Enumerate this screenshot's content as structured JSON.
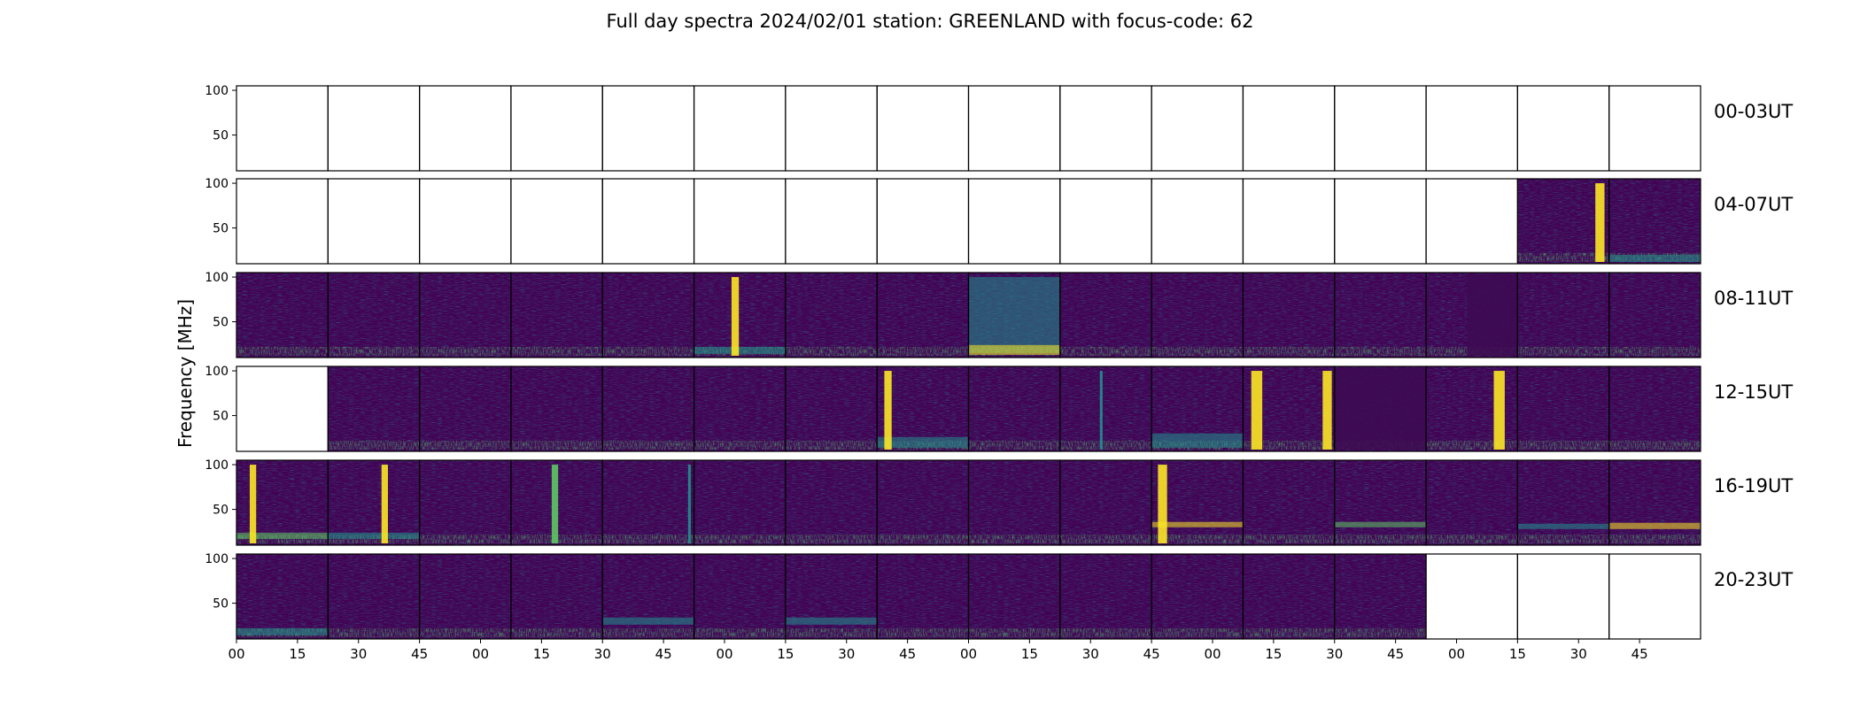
{
  "chart_data": {
    "type": "heatmap",
    "title": "Full day spectra 2024/02/01 station: GREENLAND with focus-code: 62",
    "ylabel": "Frequency [MHz]",
    "xlabel": "",
    "ylim": [
      10,
      105
    ],
    "y_ticks": [
      50,
      100
    ],
    "x_tick_labels": [
      "00",
      "15",
      "30",
      "45",
      "00",
      "15",
      "30",
      "45",
      "00",
      "15",
      "30",
      "45",
      "00",
      "15",
      "30",
      "45",
      "00",
      "15",
      "30",
      "45",
      "00",
      "15",
      "30",
      "45"
    ],
    "colormap": [
      "#440154",
      "#3b528b",
      "#21918c",
      "#5ec962",
      "#fde725"
    ],
    "rows": [
      {
        "label": "00-03UT",
        "panels": [
          0,
          0,
          0,
          0,
          0,
          0,
          0,
          0,
          0,
          0,
          0,
          0,
          0,
          0,
          0,
          0
        ],
        "bursts": [],
        "bands": []
      },
      {
        "label": "04-07UT",
        "panels": [
          0,
          0,
          0,
          0,
          0,
          0,
          0,
          0,
          0,
          0,
          0,
          0,
          0,
          0,
          1,
          1
        ],
        "bursts": [
          {
            "panel": 14,
            "pos": 0.9,
            "width": 0.1,
            "intensity": 1.0
          }
        ],
        "bands": [
          {
            "panel": 15,
            "fmin": 12,
            "fmax": 20,
            "intensity": 0.6
          }
        ]
      },
      {
        "label": "08-11UT",
        "panels": [
          1,
          1,
          1,
          1,
          1,
          1,
          1,
          1,
          1,
          1,
          1,
          1,
          1,
          1,
          1,
          1
        ],
        "bursts": [
          {
            "panel": 5,
            "pos": 0.45,
            "width": 0.08,
            "intensity": 1.0
          }
        ],
        "bands": [
          {
            "panel": 8,
            "fmin": 15,
            "fmax": 100,
            "intensity": 0.45
          },
          {
            "panel": 8,
            "fmin": 13,
            "fmax": 24,
            "intensity": 0.95
          },
          {
            "panel": 5,
            "fmin": 14,
            "fmax": 22,
            "intensity": 0.5
          }
        ],
        "quiet": [
          {
            "panel": 13,
            "from": 0.45,
            "to": 1.0
          }
        ]
      },
      {
        "label": "12-15UT",
        "panels": [
          0,
          1,
          1,
          1,
          1,
          1,
          1,
          1,
          1,
          1,
          1,
          1,
          1,
          1,
          1,
          1
        ],
        "bursts": [
          {
            "panel": 7,
            "pos": 0.12,
            "width": 0.08,
            "intensity": 1.0
          },
          {
            "panel": 9,
            "pos": 0.45,
            "width": 0.03,
            "intensity": 0.5
          },
          {
            "panel": 11,
            "pos": 0.15,
            "width": 0.12,
            "intensity": 1.0
          },
          {
            "panel": 11,
            "pos": 0.92,
            "width": 0.1,
            "intensity": 0.95
          },
          {
            "panel": 13,
            "pos": 0.8,
            "width": 0.12,
            "intensity": 1.0
          }
        ],
        "bands": [
          {
            "panel": 7,
            "fmin": 14,
            "fmax": 26,
            "intensity": 0.6
          },
          {
            "panel": 10,
            "fmin": 14,
            "fmax": 30,
            "intensity": 0.45
          }
        ],
        "quiet": [
          {
            "panel": 12,
            "from": 0.0,
            "to": 1.0
          }
        ]
      },
      {
        "label": "16-19UT",
        "panels": [
          1,
          1,
          1,
          1,
          1,
          1,
          1,
          1,
          1,
          1,
          1,
          1,
          1,
          1,
          1,
          1
        ],
        "bursts": [
          {
            "panel": 0,
            "pos": 0.18,
            "width": 0.07,
            "intensity": 1.0
          },
          {
            "panel": 1,
            "pos": 0.62,
            "width": 0.07,
            "intensity": 0.9
          },
          {
            "panel": 3,
            "pos": 0.48,
            "width": 0.07,
            "intensity": 0.8
          },
          {
            "panel": 4,
            "pos": 0.95,
            "width": 0.03,
            "intensity": 0.6
          },
          {
            "panel": 10,
            "pos": 0.12,
            "width": 0.1,
            "intensity": 1.0
          }
        ],
        "bands": [
          {
            "panel": 0,
            "fmin": 17,
            "fmax": 24,
            "intensity": 0.7
          },
          {
            "panel": 1,
            "fmin": 17,
            "fmax": 24,
            "intensity": 0.6
          },
          {
            "panel": 10,
            "fmin": 30,
            "fmax": 36,
            "intensity": 0.95
          },
          {
            "panel": 12,
            "fmin": 30,
            "fmax": 36,
            "intensity": 0.65
          },
          {
            "panel": 14,
            "fmin": 28,
            "fmax": 34,
            "intensity": 0.6
          },
          {
            "panel": 15,
            "fmin": 28,
            "fmax": 35,
            "intensity": 0.9
          }
        ]
      },
      {
        "label": "20-23UT",
        "panels": [
          1,
          1,
          1,
          1,
          1,
          1,
          1,
          1,
          1,
          1,
          1,
          1,
          1,
          0,
          0,
          0
        ],
        "bursts": [],
        "bands": [
          {
            "panel": 0,
            "fmin": 14,
            "fmax": 22,
            "intensity": 0.55
          },
          {
            "panel": 4,
            "fmin": 26,
            "fmax": 34,
            "intensity": 0.5
          },
          {
            "panel": 6,
            "fmin": 26,
            "fmax": 34,
            "intensity": 0.6
          }
        ]
      }
    ]
  }
}
